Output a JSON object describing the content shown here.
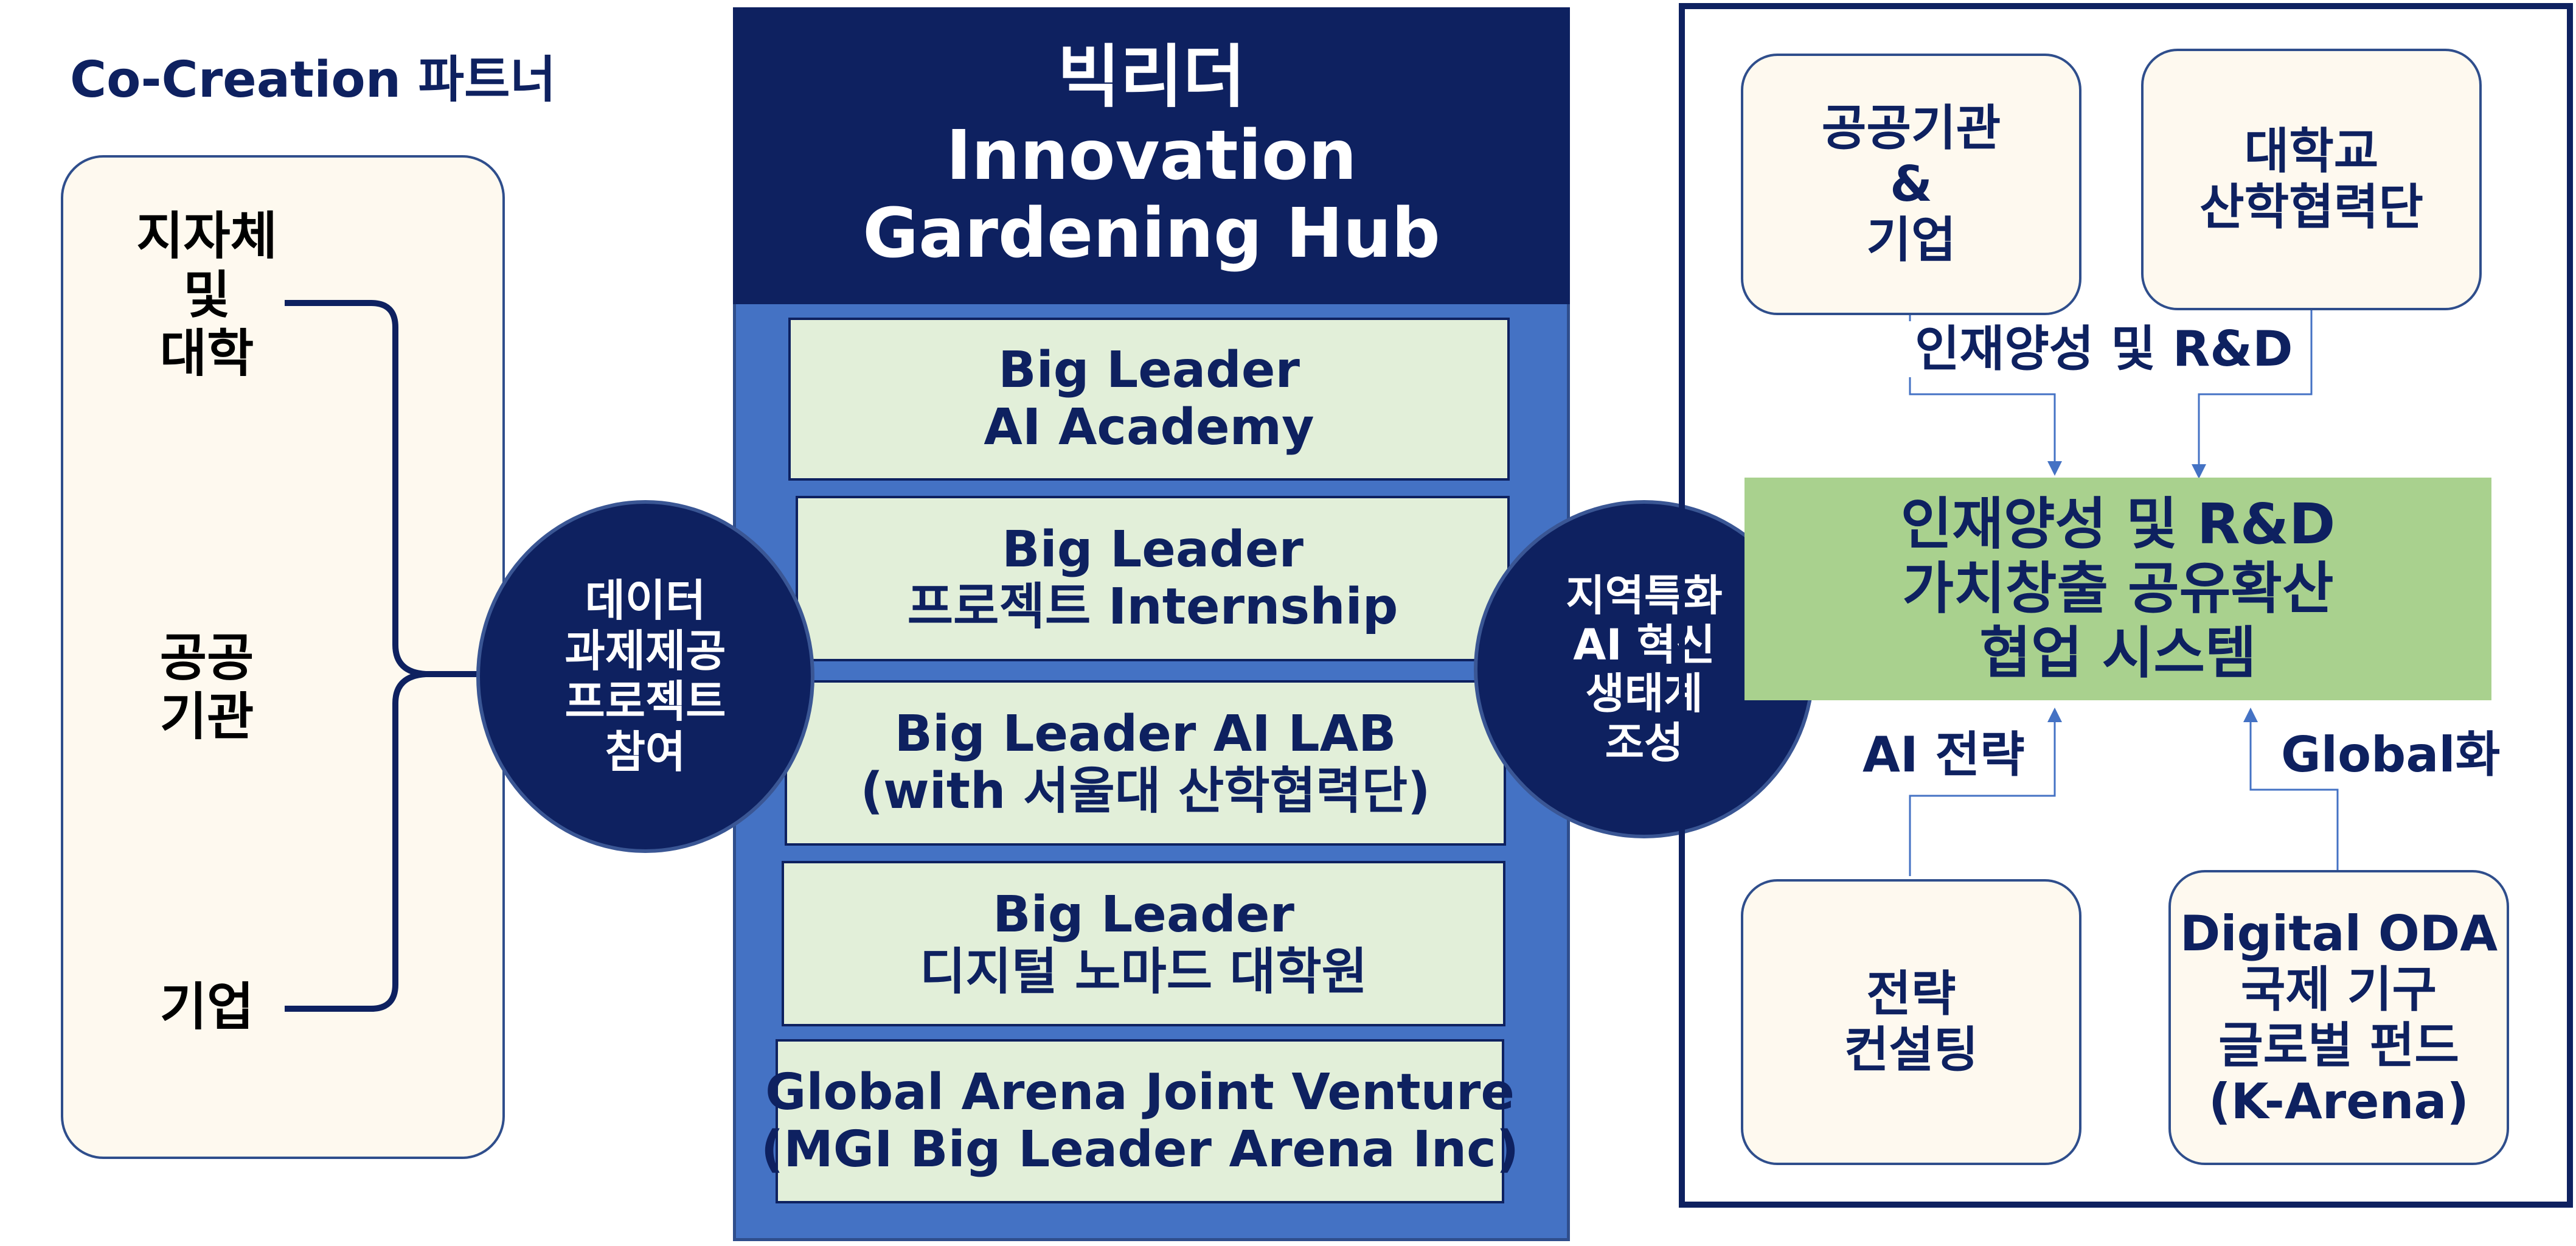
{
  "left_panel": {
    "title": "Co-Creation 파트너",
    "partners": [
      {
        "lines": [
          "지자체",
          "및",
          "대학"
        ]
      },
      {
        "lines": [
          "공공",
          "기관"
        ]
      },
      {
        "lines": [
          "기업"
        ]
      }
    ]
  },
  "left_circle": {
    "lines": [
      "데이터",
      "과제제공",
      "프로젝트",
      "참여"
    ]
  },
  "center_hub": {
    "title_lines": [
      "빅리더",
      "Innovation",
      "Gardening Hub"
    ],
    "programs": [
      {
        "lines": [
          "Big Leader",
          "AI Academy"
        ]
      },
      {
        "lines": [
          "Big Leader",
          "프로젝트 Internship"
        ]
      },
      {
        "lines": [
          "Big Leader AI LAB",
          "(with 서울대 산학협력단)"
        ]
      },
      {
        "lines": [
          "Big Leader",
          "디지털 노마드 대학원"
        ]
      },
      {
        "lines": [
          "Global Arena Joint Venture",
          "(MGI Big Leader Arena Inc)"
        ]
      }
    ]
  },
  "right_circle": {
    "lines": [
      "지역특화",
      "AI 혁신",
      "생태계",
      "조성"
    ]
  },
  "right_panel": {
    "top_boxes": [
      {
        "lines": [
          "공공기관",
          "&",
          "기업"
        ]
      },
      {
        "lines": [
          "대학교",
          "산학협력단"
        ]
      }
    ],
    "top_label": "인재양성 및 R&D",
    "center_box": {
      "lines": [
        "인재양성 및 R&D",
        "가치창출 공유확산",
        "협업 시스템"
      ]
    },
    "bottom_labels": [
      "AI 전략",
      "Global화"
    ],
    "bottom_boxes": [
      {
        "lines": [
          "전략",
          "컨설팅"
        ]
      },
      {
        "lines": [
          "Digital ODA",
          "국제 기구",
          "글로벌 펀드",
          "(K-Arena)"
        ]
      }
    ]
  },
  "colors": {
    "navy": "#0e2160",
    "blue": "#4472c4",
    "light_green": "#e2efd9",
    "green": "#a9d18e",
    "cream": "#fef9ef"
  }
}
